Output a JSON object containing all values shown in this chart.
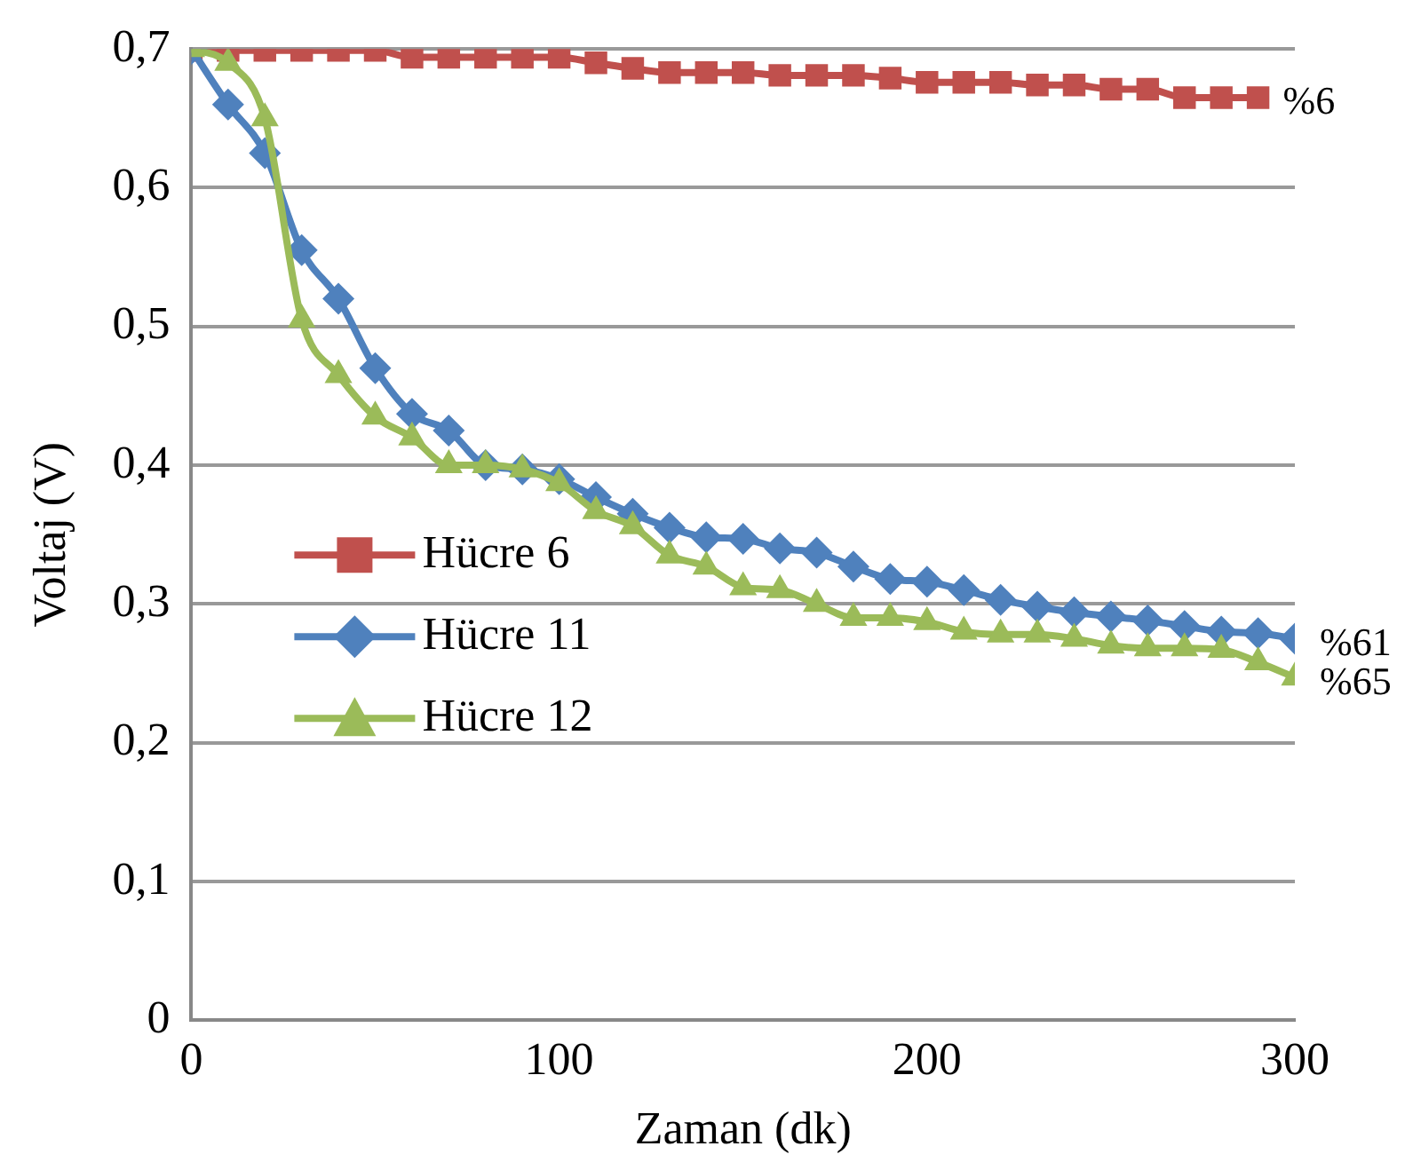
{
  "chart_data": {
    "type": "line",
    "xlabel": "Zaman (dk)",
    "ylabel": "Voltaj (V)",
    "xlim": [
      0,
      300
    ],
    "xticks": [
      0,
      100,
      200,
      300
    ],
    "ylim": [
      0,
      0.7
    ],
    "yticks": [
      0,
      {
        "value": 0.1,
        "label": "0,1"
      },
      {
        "value": 0.2,
        "label": "0,2"
      },
      {
        "value": 0.3,
        "label": "0,3"
      },
      {
        "value": 0.4,
        "label": "0,4"
      },
      {
        "value": 0.5,
        "label": "0,5"
      },
      {
        "value": 0.6,
        "label": "0,6"
      },
      {
        "value": 0.7,
        "label": "0,7"
      }
    ],
    "grid": "y",
    "legend": "bottom left",
    "series": [
      {
        "name": "Hücre 6",
        "color": "#c0504d",
        "marker": "square",
        "x": [
          0,
          10,
          20,
          30,
          40,
          50,
          60,
          70,
          80,
          90,
          100,
          110,
          120,
          130,
          140,
          150,
          160,
          170,
          180,
          190,
          200,
          210,
          220,
          230,
          240,
          250,
          260,
          270,
          280,
          290
        ],
        "values": [
          0.699,
          0.699,
          0.699,
          0.699,
          0.699,
          0.699,
          0.694,
          0.694,
          0.694,
          0.694,
          0.694,
          0.69,
          0.686,
          0.683,
          0.683,
          0.683,
          0.681,
          0.681,
          0.681,
          0.679,
          0.676,
          0.676,
          0.676,
          0.674,
          0.674,
          0.671,
          0.671,
          0.665,
          0.665,
          0.665
        ]
      },
      {
        "name": "Hücre 11",
        "color": "#4f81bd",
        "marker": "diamond",
        "x": [
          0,
          10,
          20,
          30,
          40,
          50,
          60,
          70,
          80,
          90,
          100,
          110,
          120,
          130,
          140,
          150,
          160,
          170,
          180,
          190,
          200,
          210,
          220,
          230,
          240,
          250,
          260,
          270,
          280,
          290,
          300
        ],
        "values": [
          0.7,
          0.66,
          0.625,
          0.555,
          0.52,
          0.47,
          0.437,
          0.425,
          0.4,
          0.397,
          0.39,
          0.377,
          0.365,
          0.355,
          0.348,
          0.347,
          0.34,
          0.337,
          0.327,
          0.318,
          0.316,
          0.31,
          0.303,
          0.298,
          0.294,
          0.291,
          0.288,
          0.284,
          0.28,
          0.279,
          0.275
        ]
      },
      {
        "name": "Hücre 12",
        "color": "#9bbb59",
        "marker": "triangle",
        "x": [
          0,
          10,
          20,
          30,
          40,
          50,
          60,
          70,
          80,
          90,
          100,
          110,
          120,
          130,
          140,
          150,
          160,
          170,
          180,
          190,
          200,
          210,
          220,
          230,
          240,
          250,
          260,
          270,
          280,
          290,
          300
        ],
        "values": [
          0.7,
          0.69,
          0.65,
          0.505,
          0.465,
          0.435,
          0.42,
          0.4,
          0.4,
          0.397,
          0.387,
          0.367,
          0.356,
          0.335,
          0.327,
          0.312,
          0.31,
          0.3,
          0.29,
          0.29,
          0.287,
          0.28,
          0.278,
          0.278,
          0.275,
          0.27,
          0.268,
          0.268,
          0.267,
          0.258,
          0.247
        ]
      }
    ],
    "annotations": [
      "%6",
      "%61",
      "%65"
    ]
  }
}
